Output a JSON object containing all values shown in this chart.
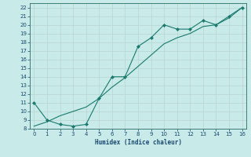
{
  "xlabel": "Humidex (Indice chaleur)",
  "line1_x": [
    0,
    1,
    2,
    3,
    4,
    5,
    6,
    7,
    8,
    9,
    10,
    11,
    12,
    13,
    14,
    15,
    16
  ],
  "line1_y": [
    11,
    9,
    8.5,
    8.3,
    8.5,
    11.5,
    14,
    14,
    17.5,
    18.5,
    20,
    19.5,
    19.5,
    20.5,
    20,
    21,
    22
  ],
  "line2_x": [
    0,
    1,
    2,
    3,
    4,
    5,
    6,
    7,
    8,
    9,
    10,
    11,
    12,
    13,
    14,
    15,
    16
  ],
  "line2_y": [
    8.3,
    8.8,
    9.5,
    10.0,
    10.5,
    11.5,
    12.8,
    13.9,
    15.2,
    16.5,
    17.8,
    18.5,
    19.0,
    19.8,
    20.0,
    20.8,
    22.0
  ],
  "line_color": "#1a7a6e",
  "bg_color": "#c8eae8",
  "grid_major_color": "#b8d4d0",
  "grid_minor_color": "#d0e8e4",
  "spine_color": "#2a6a64",
  "tick_color": "#1a4a6e",
  "ylim": [
    8,
    22.5
  ],
  "xlim": [
    -0.3,
    16.3
  ],
  "yticks": [
    8,
    9,
    10,
    11,
    12,
    13,
    14,
    15,
    16,
    17,
    18,
    19,
    20,
    21,
    22
  ],
  "xticks": [
    0,
    1,
    2,
    3,
    4,
    5,
    6,
    7,
    8,
    9,
    10,
    11,
    12,
    13,
    14,
    15,
    16
  ],
  "tick_fontsize": 5,
  "xlabel_fontsize": 5.5
}
